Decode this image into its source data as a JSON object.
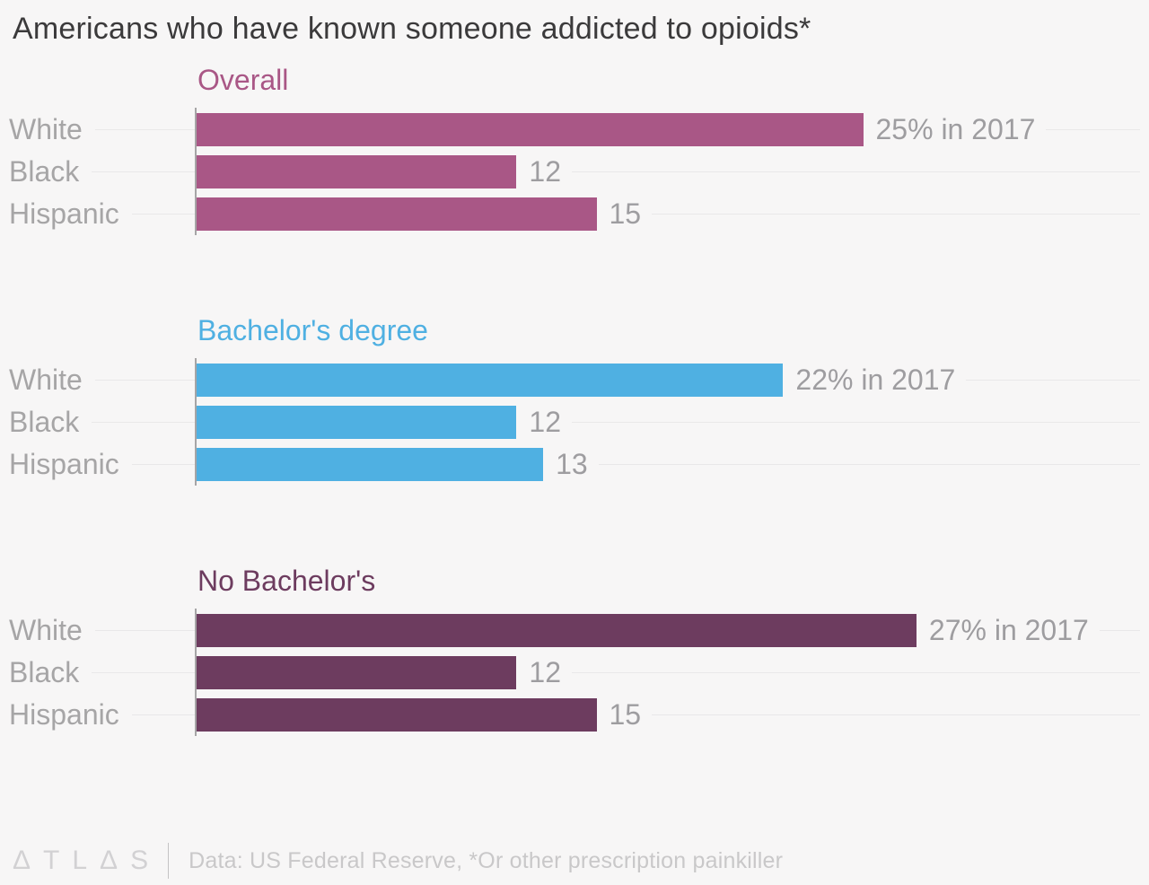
{
  "title": "Americans who have known someone addicted to opioids*",
  "chart_data": {
    "type": "bar",
    "orientation": "horizontal",
    "title": "Americans who have known someone addicted to opioids*",
    "unit": "percent of adults",
    "xlim": [
      0,
      35.5
    ],
    "grid": "per-row horizontal lines",
    "legend": "none",
    "categories": [
      "White",
      "Black",
      "Hispanic"
    ],
    "groups": [
      {
        "name": "Overall",
        "color": "#a95786",
        "values": [
          25,
          12,
          15
        ],
        "labels": [
          "25% in 2017",
          "12",
          "15"
        ]
      },
      {
        "name": "Bachelor's degree",
        "color": "#4fb0e2",
        "values": [
          22,
          12,
          13
        ],
        "labels": [
          "22% in 2017",
          "12",
          "13"
        ]
      },
      {
        "name": "No Bachelor's",
        "color": "#6d3c5f",
        "values": [
          27,
          12,
          15
        ],
        "labels": [
          "27% in 2017",
          "12",
          "15"
        ]
      }
    ],
    "source": "Data: US Federal Reserve, *Or other prescription painkiller"
  },
  "footer": {
    "logo": "ΔTLΔS",
    "source": "Data: US Federal Reserve, *Or other prescription painkiller"
  }
}
